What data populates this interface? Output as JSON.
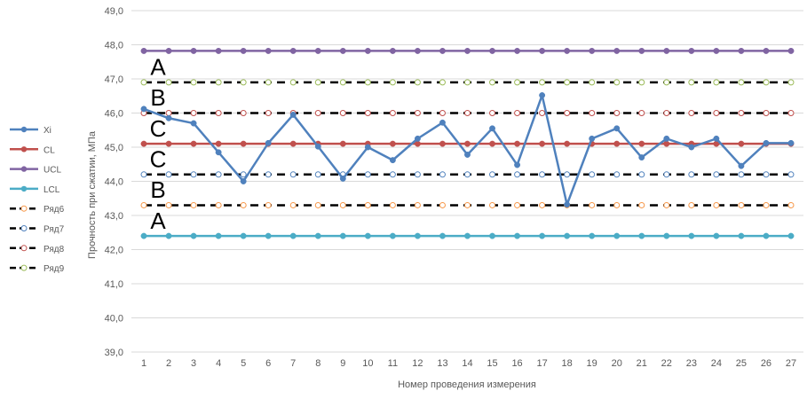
{
  "chart_data": {
    "type": "line",
    "xlabel": "Номер проведения измерения",
    "ylabel": "Прочность при сжатии, МПа",
    "ylim": [
      39.0,
      49.0
    ],
    "yticks": [
      "39,0",
      "40,0",
      "41,0",
      "42,0",
      "43,0",
      "44,0",
      "45,0",
      "46,0",
      "47,0",
      "48,0",
      "49,0"
    ],
    "categories": [
      "1",
      "2",
      "3",
      "4",
      "5",
      "6",
      "7",
      "8",
      "9",
      "10",
      "11",
      "12",
      "13",
      "14",
      "15",
      "16",
      "17",
      "18",
      "19",
      "20",
      "21",
      "22",
      "23",
      "24",
      "25",
      "26",
      "27"
    ],
    "grid": true,
    "legend_position": "left",
    "series": [
      {
        "name": "Xi",
        "color": "#4f81bd",
        "style": "solid",
        "marker": "filled",
        "values": [
          46.12,
          45.85,
          45.7,
          44.85,
          44.0,
          45.12,
          45.95,
          45.02,
          44.08,
          45.0,
          44.62,
          45.25,
          45.72,
          44.78,
          45.55,
          44.48,
          46.52,
          43.32,
          45.25,
          45.55,
          44.7,
          45.25,
          45.0,
          45.25,
          44.45,
          45.12,
          45.12
        ]
      },
      {
        "name": "CL",
        "color": "#c0504d",
        "style": "solid",
        "marker": "filled",
        "values": [
          45.1,
          45.1,
          45.1,
          45.1,
          45.1,
          45.1,
          45.1,
          45.1,
          45.1,
          45.1,
          45.1,
          45.1,
          45.1,
          45.1,
          45.1,
          45.1,
          45.1,
          45.1,
          45.1,
          45.1,
          45.1,
          45.1,
          45.1,
          45.1,
          45.1,
          45.1,
          45.1
        ]
      },
      {
        "name": "UCL",
        "color": "#8064a2",
        "style": "solid",
        "marker": "filled",
        "values": [
          47.82,
          47.82,
          47.82,
          47.82,
          47.82,
          47.82,
          47.82,
          47.82,
          47.82,
          47.82,
          47.82,
          47.82,
          47.82,
          47.82,
          47.82,
          47.82,
          47.82,
          47.82,
          47.82,
          47.82,
          47.82,
          47.82,
          47.82,
          47.82,
          47.82,
          47.82,
          47.82
        ]
      },
      {
        "name": "LCL",
        "color": "#4bacc6",
        "style": "solid",
        "marker": "filled",
        "values": [
          42.4,
          42.4,
          42.4,
          42.4,
          42.4,
          42.4,
          42.4,
          42.4,
          42.4,
          42.4,
          42.4,
          42.4,
          42.4,
          42.4,
          42.4,
          42.4,
          42.4,
          42.4,
          42.4,
          42.4,
          42.4,
          42.4,
          42.4,
          42.4,
          42.4,
          42.4,
          42.4
        ]
      },
      {
        "name": "Ряд6",
        "color": "#000000",
        "marker_color": "#f79646",
        "style": "dashed",
        "marker": "hollow",
        "values": [
          43.3,
          43.3,
          43.3,
          43.3,
          43.3,
          43.3,
          43.3,
          43.3,
          43.3,
          43.3,
          43.3,
          43.3,
          43.3,
          43.3,
          43.3,
          43.3,
          43.3,
          43.3,
          43.3,
          43.3,
          43.3,
          43.3,
          43.3,
          43.3,
          43.3,
          43.3,
          43.3
        ]
      },
      {
        "name": "Ряд7",
        "color": "#000000",
        "marker_color": "#4f81bd",
        "style": "dashed",
        "marker": "hollow",
        "values": [
          44.2,
          44.2,
          44.2,
          44.2,
          44.2,
          44.2,
          44.2,
          44.2,
          44.2,
          44.2,
          44.2,
          44.2,
          44.2,
          44.2,
          44.2,
          44.2,
          44.2,
          44.2,
          44.2,
          44.2,
          44.2,
          44.2,
          44.2,
          44.2,
          44.2,
          44.2,
          44.2
        ]
      },
      {
        "name": "Ряд8",
        "color": "#000000",
        "marker_color": "#c0504d",
        "style": "dashed",
        "marker": "hollow",
        "values": [
          46.0,
          46.0,
          46.0,
          46.0,
          46.0,
          46.0,
          46.0,
          46.0,
          46.0,
          46.0,
          46.0,
          46.0,
          46.0,
          46.0,
          46.0,
          46.0,
          46.0,
          46.0,
          46.0,
          46.0,
          46.0,
          46.0,
          46.0,
          46.0,
          46.0,
          46.0,
          46.0
        ]
      },
      {
        "name": "Ряд9",
        "color": "#000000",
        "marker_color": "#9bbb59",
        "style": "dashed",
        "marker": "hollow",
        "values": [
          46.9,
          46.9,
          46.9,
          46.9,
          46.9,
          46.9,
          46.9,
          46.9,
          46.9,
          46.9,
          46.9,
          46.9,
          46.9,
          46.9,
          46.9,
          46.9,
          46.9,
          46.9,
          46.9,
          46.9,
          46.9,
          46.9,
          46.9,
          46.9,
          46.9,
          46.9,
          46.9
        ]
      }
    ],
    "annotations": [
      {
        "text": "A",
        "y": 47.35
      },
      {
        "text": "B",
        "y": 46.45
      },
      {
        "text": "C",
        "y": 45.55
      },
      {
        "text": "C",
        "y": 44.65
      },
      {
        "text": "B",
        "y": 43.75
      },
      {
        "text": "A",
        "y": 42.85
      }
    ]
  }
}
